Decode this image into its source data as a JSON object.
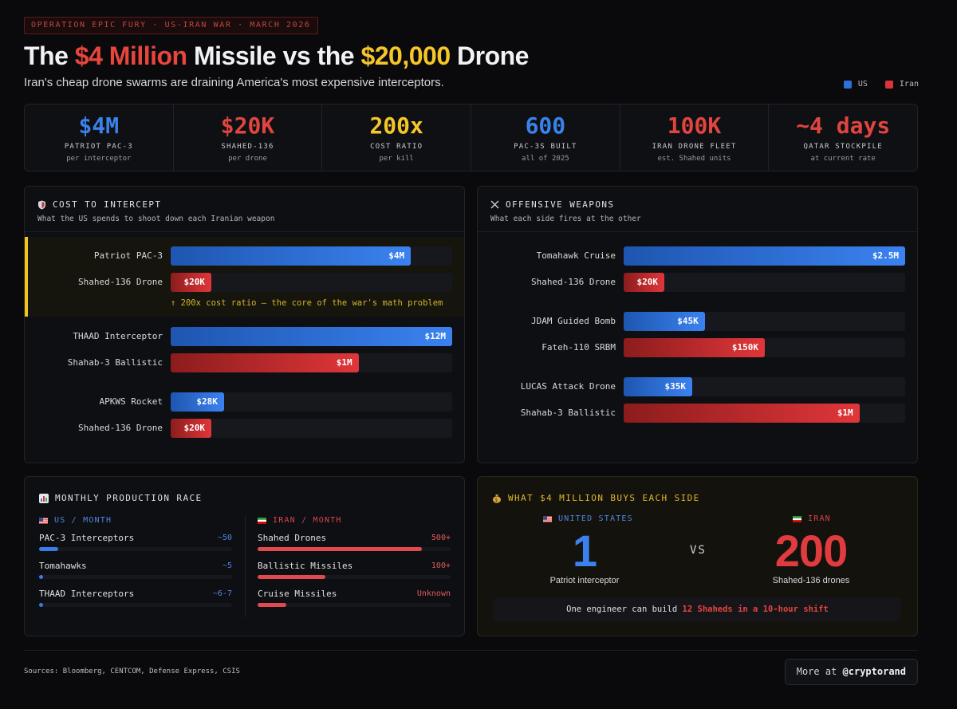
{
  "header": {
    "tag": "OPERATION EPIC FURY · US-IRAN WAR · MARCH 2026",
    "title_parts": [
      "The ",
      "$4 Million",
      " Missile vs the ",
      "$20,000",
      " Drone"
    ],
    "subtitle": "Iran's cheap drone swarms are draining America's most expensive interceptors."
  },
  "legend": {
    "us": "US",
    "iran": "Iran"
  },
  "colors": {
    "us": "#2f6fd8",
    "iran": "#d9343a",
    "highlight": "#f0c419",
    "ratio": "#f5c62a"
  },
  "stats": [
    {
      "value": "$4M",
      "label": "PATRIOT PAC-3",
      "sub": "per interceptor",
      "color": "#3a82ea"
    },
    {
      "value": "$20K",
      "label": "SHAHED-136",
      "sub": "per drone",
      "color": "#e0453f"
    },
    {
      "value": "200x",
      "label": "COST RATIO",
      "sub": "per kill",
      "color": "#f5c62a"
    },
    {
      "value": "600",
      "label": "PAC-3S BUILT",
      "sub": "all of 2025",
      "color": "#3a82ea"
    },
    {
      "value": "100K",
      "label": "IRAN DRONE FLEET",
      "sub": "est. Shahed units",
      "color": "#e0453f"
    },
    {
      "value": "~4 days",
      "label": "QATAR STOCKPILE",
      "sub": "at current rate",
      "color": "#e0453f"
    }
  ],
  "cost_panel": {
    "icon": "shield-icon",
    "title": "COST TO INTERCEPT",
    "subtitle": "What the US spends to shoot down each Iranian weapon",
    "note": "↑ 200x cost ratio — the core of the war's math problem"
  },
  "weapons_panel": {
    "icon": "crossed-swords-icon",
    "title": "OFFENSIVE WEAPONS",
    "subtitle": "What each side fires at the other"
  },
  "chart_data": [
    {
      "type": "bar",
      "orientation": "horizontal",
      "title": "COST TO INTERCEPT",
      "unit": "USD",
      "bars": [
        {
          "label": "Patriot PAC-3",
          "side": "us",
          "value": 4000000,
          "display": "$4M"
        },
        {
          "label": "Shahed-136 Drone",
          "side": "iran",
          "value": 20000,
          "display": "$20K"
        },
        {
          "label": "THAAD Interceptor",
          "side": "us",
          "value": 12000000,
          "display": "$12M"
        },
        {
          "label": "Shahab-3 Ballistic",
          "side": "iran",
          "value": 1000000,
          "display": "$1M"
        },
        {
          "label": "APKWS Rocket",
          "side": "us",
          "value": 28000,
          "display": "$28K"
        },
        {
          "label": "Shahed-136 Drone",
          "side": "iran",
          "value": 20000,
          "display": "$20K"
        }
      ]
    },
    {
      "type": "bar",
      "orientation": "horizontal",
      "title": "OFFENSIVE WEAPONS",
      "unit": "USD",
      "bars": [
        {
          "label": "Tomahawk Cruise",
          "side": "us",
          "value": 2500000,
          "display": "$2.5M"
        },
        {
          "label": "Shahed-136 Drone",
          "side": "iran",
          "value": 20000,
          "display": "$20K"
        },
        {
          "label": "JDAM Guided Bomb",
          "side": "us",
          "value": 45000,
          "display": "$45K"
        },
        {
          "label": "Fateh-110 SRBM",
          "side": "iran",
          "value": 150000,
          "display": "$150K"
        },
        {
          "label": "LUCAS Attack Drone",
          "side": "us",
          "value": 35000,
          "display": "$35K"
        },
        {
          "label": "Shahab-3 Ballistic",
          "side": "iran",
          "value": 1000000,
          "display": "$1M"
        }
      ]
    },
    {
      "type": "bar",
      "title": "MONTHLY PRODUCTION RACE",
      "series": [
        {
          "name": "US / MONTH",
          "items": [
            {
              "label": "PAC-3 Interceptors",
              "display": "~50",
              "fraction": 0.1
            },
            {
              "label": "Tomahawks",
              "display": "~5",
              "fraction": 0.01
            },
            {
              "label": "THAAD Interceptors",
              "display": "~6-7",
              "fraction": 0.013
            }
          ]
        },
        {
          "name": "IRAN / MONTH",
          "items": [
            {
              "label": "Shahed Drones",
              "display": "500+",
              "fraction": 0.85
            },
            {
              "label": "Ballistic Missiles",
              "display": "100+",
              "fraction": 0.35
            },
            {
              "label": "Cruise Missiles",
              "display": "Unknown",
              "fraction": 0.15
            }
          ]
        }
      ]
    }
  ],
  "production_panel": {
    "icon": "bar-chart-icon",
    "title": "MONTHLY PRODUCTION RACE",
    "us_head": "US / MONTH",
    "iran_head": "IRAN / MONTH"
  },
  "buys_panel": {
    "icon": "money-bag-icon",
    "title": "WHAT $4 MILLION BUYS EACH SIDE",
    "us_head": "UNITED STATES",
    "iran_head": "IRAN",
    "us_value": "1",
    "us_caption": "Patriot interceptor",
    "vs": "VS",
    "iran_value": "200",
    "iran_caption": "Shahed-136 drones",
    "note_pre": "One engineer can build ",
    "note_hi": "12 Shaheds in a 10-hour shift"
  },
  "footer": {
    "sources": "Sources: Bloomberg, CENTCOM, Defense Express, CSIS",
    "more_pre": "More at ",
    "more_handle": "@cryptorand"
  }
}
